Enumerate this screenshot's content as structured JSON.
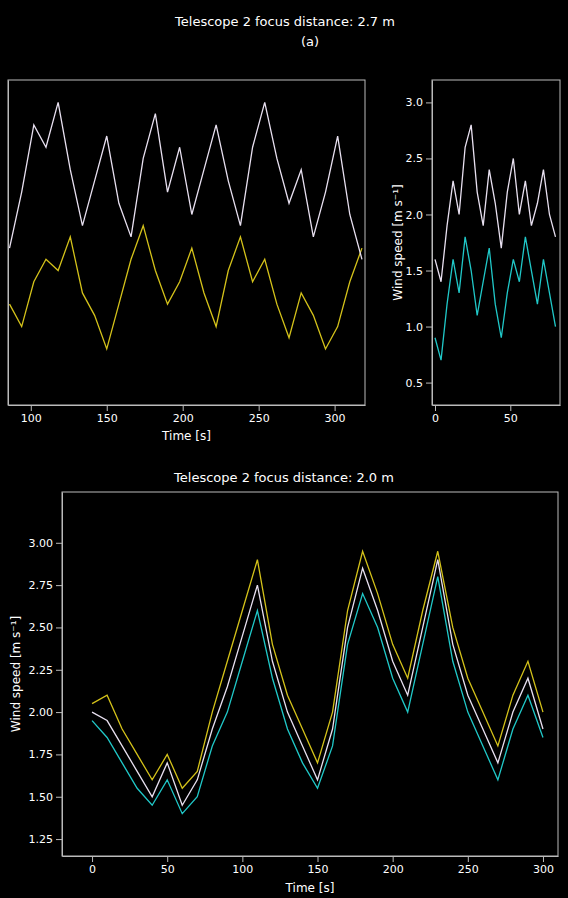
{
  "chart_data": [
    {
      "type": "line",
      "title": "Telescope 2 focus distance: 2.7 m",
      "subtitle": "(a)",
      "x_label": "Time [s]",
      "x": [
        86,
        94,
        102,
        110,
        118,
        126,
        134,
        142,
        150,
        158,
        166,
        174,
        182,
        190,
        198,
        206,
        214,
        222,
        230,
        238,
        246,
        254,
        262,
        270,
        278,
        286,
        294,
        302,
        310,
        318
      ],
      "series": [
        {
          "color": "#d4c21a",
          "values": [
            1.2,
            1.0,
            1.4,
            1.6,
            1.5,
            1.8,
            1.3,
            1.1,
            0.8,
            1.2,
            1.6,
            1.9,
            1.5,
            1.2,
            1.4,
            1.7,
            1.3,
            1.0,
            1.5,
            1.8,
            1.4,
            1.6,
            1.2,
            0.9,
            1.3,
            1.1,
            0.8,
            1.0,
            1.4,
            1.7
          ]
        },
        {
          "color": "#e8e0f0",
          "values": [
            1.7,
            2.2,
            2.8,
            2.6,
            3.0,
            2.4,
            1.9,
            2.3,
            2.7,
            2.1,
            1.8,
            2.5,
            2.9,
            2.2,
            2.6,
            2.0,
            2.4,
            2.8,
            2.3,
            1.9,
            2.6,
            3.0,
            2.5,
            2.1,
            2.4,
            1.8,
            2.2,
            2.7,
            2.0,
            1.6
          ]
        }
      ],
      "xlim": [
        85,
        320
      ],
      "xticks": [
        100,
        150,
        200,
        250,
        300
      ],
      "ylim": [
        0.3,
        3.2
      ],
      "tick_labels": "x"
    },
    {
      "type": "line",
      "y_label": "Wind speed [m s⁻¹]",
      "x": [
        0,
        4,
        8,
        12,
        16,
        20,
        24,
        28,
        32,
        36,
        40,
        44,
        48,
        52,
        56,
        60,
        64,
        68,
        72,
        76,
        80
      ],
      "series": [
        {
          "color": "#20c8c8",
          "values": [
            0.9,
            0.7,
            1.2,
            1.6,
            1.3,
            1.8,
            1.5,
            1.1,
            1.4,
            1.7,
            1.2,
            0.9,
            1.3,
            1.6,
            1.4,
            1.8,
            1.5,
            1.2,
            1.6,
            1.3,
            1.0
          ]
        },
        {
          "color": "#e8e0f0",
          "values": [
            1.6,
            1.4,
            1.9,
            2.3,
            2.0,
            2.6,
            2.8,
            2.2,
            1.9,
            2.4,
            2.1,
            1.7,
            2.2,
            2.5,
            2.0,
            2.3,
            1.9,
            2.1,
            2.4,
            2.0,
            1.8
          ]
        }
      ],
      "xlim": [
        -2,
        83
      ],
      "xticks": [
        0,
        50
      ],
      "ylim": [
        0.3,
        3.2
      ],
      "yticks": [
        0.5,
        {
          "value": 1,
          "label": "1.0"
        },
        1.5,
        {
          "value": 2,
          "label": "2.0"
        },
        2.5,
        {
          "value": 3,
          "label": "3.0"
        }
      ]
    },
    {
      "type": "line",
      "title": "Telescope 2 focus distance: 2.0 m",
      "x_label": "Time [s]",
      "y_label": "Wind speed [m s⁻¹]",
      "x": [
        0,
        10,
        20,
        30,
        40,
        50,
        60,
        70,
        80,
        90,
        100,
        110,
        120,
        130,
        140,
        150,
        160,
        170,
        180,
        190,
        200,
        210,
        220,
        230,
        240,
        250,
        260,
        270,
        280,
        290,
        300
      ],
      "series": [
        {
          "color": "#20c8c8",
          "values": [
            1.95,
            1.85,
            1.7,
            1.55,
            1.45,
            1.6,
            1.4,
            1.5,
            1.8,
            2.0,
            2.3,
            2.6,
            2.2,
            1.9,
            1.7,
            1.55,
            1.8,
            2.4,
            2.7,
            2.5,
            2.2,
            2.0,
            2.4,
            2.8,
            2.3,
            2.0,
            1.8,
            1.6,
            1.9,
            2.1,
            1.85
          ]
        },
        {
          "color": "#d4c21a",
          "values": [
            2.05,
            2.1,
            1.9,
            1.75,
            1.6,
            1.75,
            1.55,
            1.65,
            2.0,
            2.3,
            2.6,
            2.9,
            2.4,
            2.1,
            1.9,
            1.7,
            2.0,
            2.6,
            2.95,
            2.7,
            2.4,
            2.2,
            2.6,
            2.95,
            2.5,
            2.2,
            2.0,
            1.8,
            2.1,
            2.3,
            2.0
          ]
        },
        {
          "color": "#e8e0f0",
          "values": [
            2.0,
            1.95,
            1.8,
            1.65,
            1.5,
            1.7,
            1.45,
            1.6,
            1.9,
            2.15,
            2.45,
            2.75,
            2.3,
            2.0,
            1.8,
            1.6,
            1.9,
            2.5,
            2.85,
            2.6,
            2.3,
            2.1,
            2.5,
            2.9,
            2.4,
            2.1,
            1.9,
            1.7,
            2.0,
            2.2,
            1.9
          ]
        }
      ],
      "xlim": [
        -20,
        310
      ],
      "xticks": [
        0,
        50,
        100,
        150,
        200,
        250,
        300
      ],
      "ylim": [
        1.15,
        3.3
      ],
      "yticks": [
        1.25,
        {
          "value": 1.5,
          "label": "1.50"
        },
        1.75,
        {
          "value": 2,
          "label": "2.00"
        },
        2.25,
        {
          "value": 2.5,
          "label": "2.50"
        },
        2.75,
        {
          "value": 3,
          "label": "3.00"
        }
      ]
    }
  ]
}
